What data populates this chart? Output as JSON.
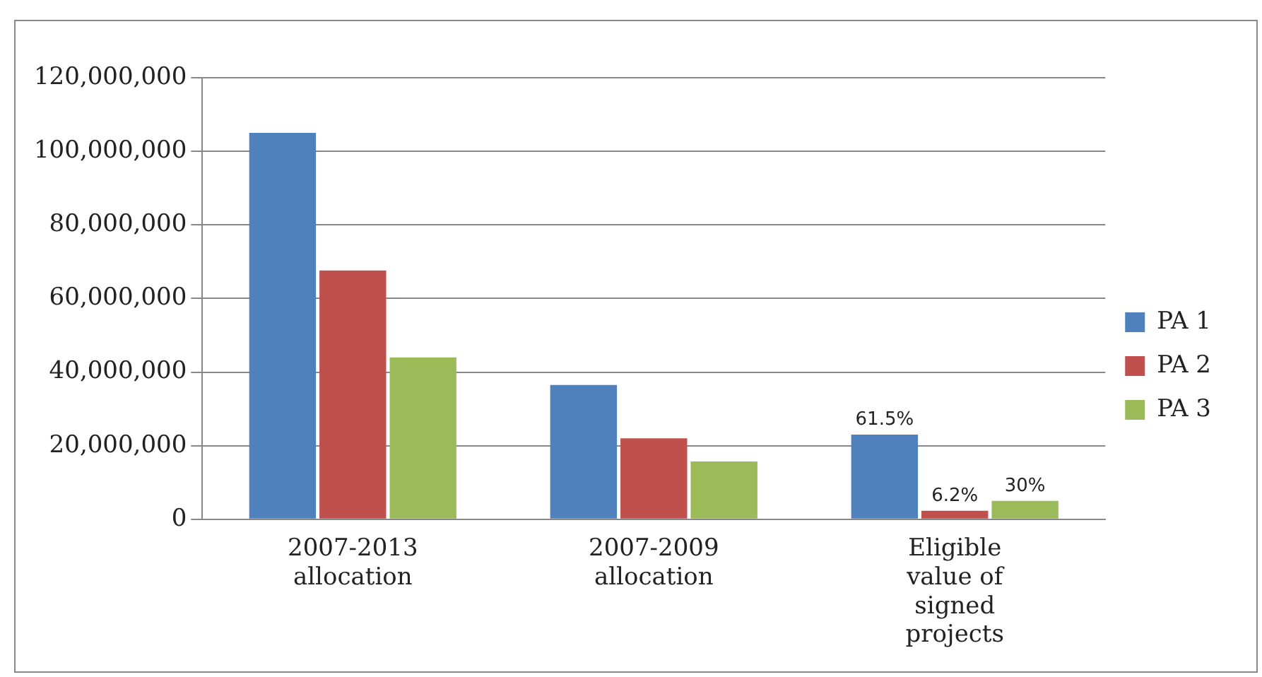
{
  "chart_data": {
    "type": "bar",
    "categories": [
      "2007-2013 allocation",
      "2007-2009 allocation",
      "Eligible value of signed projects"
    ],
    "series": [
      {
        "name": "PA 1",
        "color": "#4f81bd",
        "values": [
          105000000,
          36500000,
          23000000
        ]
      },
      {
        "name": "PA 2",
        "color": "#c0504d",
        "values": [
          67600000,
          22000000,
          2300000
        ]
      },
      {
        "name": "PA 3",
        "color": "#9bbb59",
        "values": [
          44000000,
          15700000,
          5000000
        ]
      }
    ],
    "annotations": [
      "61.5%",
      "6.2%",
      "30%"
    ],
    "ylim": [
      0,
      120000000
    ],
    "yticks": [
      0,
      {
        "value": 20000000,
        "label": "20,000,000"
      },
      {
        "value": 40000000,
        "label": "40,000,000"
      },
      {
        "value": 60000000,
        "label": "60,000,000"
      },
      {
        "value": 80000000,
        "label": "80,000,000"
      },
      {
        "value": 100000000,
        "label": "100,000,000"
      },
      {
        "value": 120000000,
        "label": "120,000,000"
      }
    ],
    "grid": "y",
    "legend": "right"
  }
}
